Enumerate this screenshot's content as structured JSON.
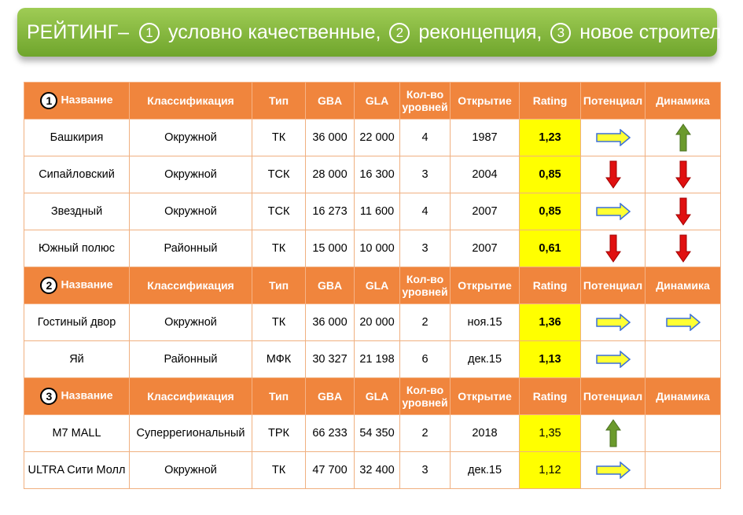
{
  "banner": {
    "prefix": "РЕЙТИНГ–",
    "m1": "1",
    "t1": "условно качественные,",
    "m2": "2",
    "t2": "реконцепция,",
    "m3": "3",
    "t3": "новое строительство"
  },
  "header": {
    "name": "Название",
    "classification": "Классификация",
    "type": "Тип",
    "gba": "GBA",
    "gla": "GLA",
    "levels": "Кол-во уровней",
    "opening": "Открытие",
    "rating": "Rating",
    "potential": "Потенциал",
    "dynamics": "Динамика"
  },
  "groups": [
    {
      "num": "1",
      "rows": [
        {
          "name": "Башкирия",
          "cls": "Окружной",
          "type": "ТК",
          "gba": "36 000",
          "gla": "22 000",
          "levels": "4",
          "open": "1987",
          "rating": "1,23",
          "potential": "arrow-right-icon",
          "dynamics": "arrow-up-icon"
        },
        {
          "name": "Сипайловский",
          "cls": "Окружной",
          "type": "ТСК",
          "gba": "28 000",
          "gla": "16 300",
          "levels": "3",
          "open": "2004",
          "rating": "0,85",
          "potential": "arrow-down-icon",
          "dynamics": "arrow-down-icon"
        },
        {
          "name": "Звездный",
          "cls": "Окружной",
          "type": "ТСК",
          "gba": "16 273",
          "gla": "11 600",
          "levels": "4",
          "open": "2007",
          "rating": "0,85",
          "potential": "arrow-right-icon",
          "dynamics": "arrow-down-icon"
        },
        {
          "name": "Южный полюс",
          "cls": "Районный",
          "type": "ТК",
          "gba": "15 000",
          "gla": "10 000",
          "levels": "3",
          "open": "2007",
          "rating": "0,61",
          "potential": "arrow-down-icon",
          "dynamics": "arrow-down-icon"
        }
      ]
    },
    {
      "num": "2",
      "rows": [
        {
          "name": "Гостиный двор",
          "cls": "Окружной",
          "type": "ТК",
          "gba": "36 000",
          "gla": "20 000",
          "levels": "2",
          "open": "ноя.15",
          "rating": "1,36",
          "potential": "arrow-right-icon",
          "dynamics": "arrow-right-icon"
        },
        {
          "name": "Яй",
          "cls": "Районный",
          "type": "МФК",
          "gba": "30 327",
          "gla": "21 198",
          "levels": "6",
          "open": "дек.15",
          "rating": "1,13",
          "potential": "arrow-right-icon",
          "dynamics": ""
        }
      ]
    },
    {
      "num": "3",
      "rows": [
        {
          "name": "M7 MALL",
          "cls": "Суперрегиональный",
          "type": "ТРК",
          "gba": "66 233",
          "gla": "54 350",
          "levels": "2",
          "open": "2018",
          "rating": "1,35",
          "potential": "arrow-up-icon",
          "dynamics": ""
        },
        {
          "name": "ULTRA Сити Молл",
          "cls": "Окружной",
          "type": "ТК",
          "gba": "47 700",
          "gla": "32 400",
          "levels": "3",
          "open": "дек.15",
          "rating": "1,12",
          "potential": "arrow-right-icon",
          "dynamics": ""
        }
      ]
    }
  ],
  "colors": {
    "header_bg": "#f0853d",
    "rating_bg": "#ffff00",
    "banner": "#86b83e",
    "arrow_right": "#ffff33",
    "arrow_up": "#6b9a2c",
    "arrow_down": "#e01010"
  }
}
